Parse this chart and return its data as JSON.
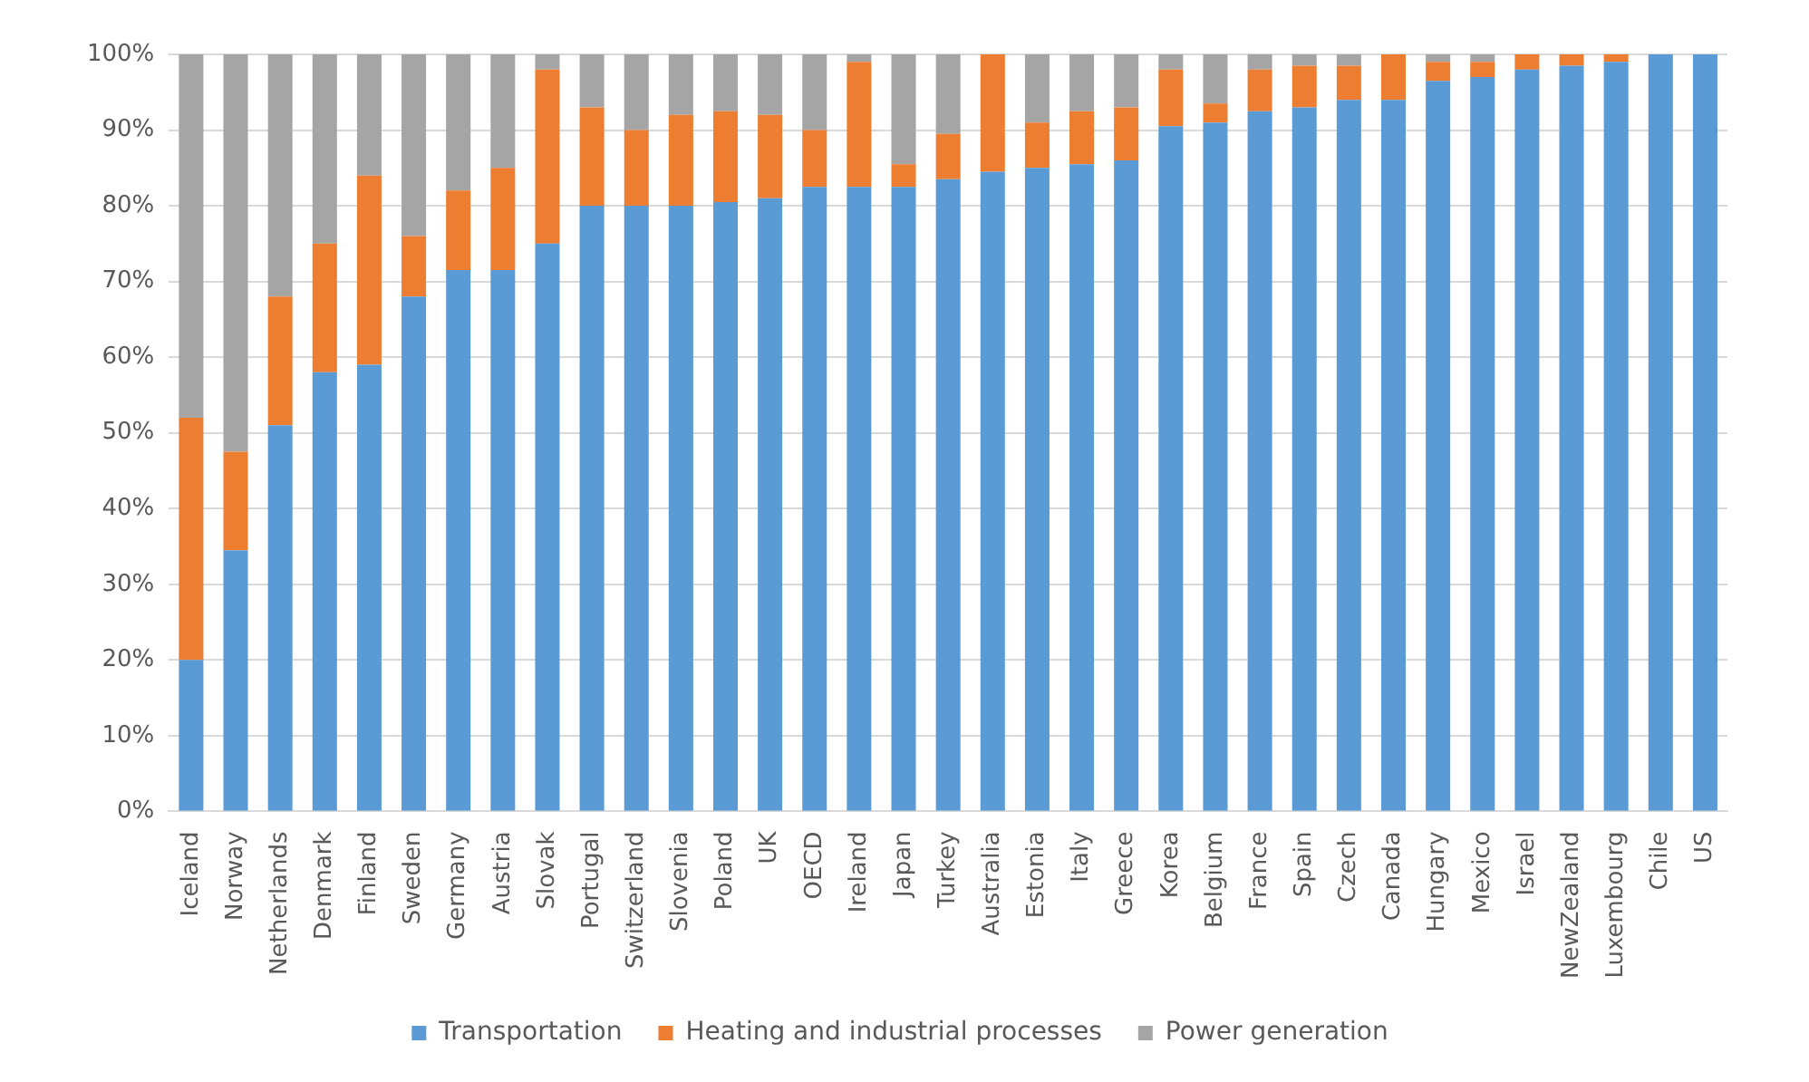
{
  "chart_data": {
    "type": "bar",
    "stacked": true,
    "categories": [
      "Iceland",
      "Norway",
      "Netherlands",
      "Denmark",
      "Finland",
      "Sweden",
      "Germany",
      "Austria",
      "Slovak",
      "Portugal",
      "Switzerland",
      "Slovenia",
      "Poland",
      "UK",
      "OECD",
      "Ireland",
      "Japan",
      "Turkey",
      "Australia",
      "Estonia",
      "Italy",
      "Greece",
      "Korea",
      "Belgium",
      "France",
      "Spain",
      "Czech",
      "Canada",
      "Hungary",
      "Mexico",
      "Israel",
      "NewZealand",
      "Luxembourg",
      "Chile",
      "US"
    ],
    "series": [
      {
        "name": "Transportation",
        "color": "#5b9bd5",
        "values": [
          20,
          34.5,
          51,
          58,
          59,
          68,
          71.5,
          71.5,
          75,
          80,
          80,
          80,
          80.5,
          81,
          82.5,
          82.5,
          82.5,
          83.5,
          84.5,
          85,
          85.5,
          86,
          90.5,
          91,
          92.5,
          93,
          94,
          94,
          96.5,
          97,
          98,
          98.5,
          99,
          100,
          100
        ]
      },
      {
        "name": "Heating and industrial processes",
        "color": "#ed7d31",
        "values": [
          32,
          13,
          17,
          17,
          25,
          8,
          10.5,
          13.5,
          23,
          13,
          10,
          12,
          12,
          11,
          7.5,
          16.5,
          3,
          6,
          15.5,
          6,
          7,
          7,
          7.5,
          2.5,
          5.5,
          5.5,
          4.5,
          6,
          2.5,
          2,
          2,
          1.5,
          1,
          0,
          0
        ]
      },
      {
        "name": "Power generation",
        "color": "#a5a5a5",
        "values": [
          48,
          52.5,
          32,
          25,
          16,
          24,
          18,
          15,
          2,
          7,
          10,
          8,
          7.5,
          8,
          10,
          1,
          14.5,
          10.5,
          0,
          9,
          7.5,
          7,
          2,
          6.5,
          2,
          1.5,
          1.5,
          0,
          1,
          1,
          0,
          0,
          0,
          0,
          0
        ]
      }
    ],
    "ylim": [
      0,
      100
    ],
    "yticks": [
      {
        "value": 0,
        "label": "0%"
      },
      {
        "value": 10,
        "label": "10%"
      },
      {
        "value": 20,
        "label": "20%"
      },
      {
        "value": 30,
        "label": "30%"
      },
      {
        "value": 40,
        "label": "40%"
      },
      {
        "value": 50,
        "label": "50%"
      },
      {
        "value": 60,
        "label": "60%"
      },
      {
        "value": 70,
        "label": "70%"
      },
      {
        "value": 80,
        "label": "80%"
      },
      {
        "value": 90,
        "label": "90%"
      },
      {
        "value": 100,
        "label": "100%"
      }
    ],
    "grid": "y",
    "legend": "bottom"
  }
}
